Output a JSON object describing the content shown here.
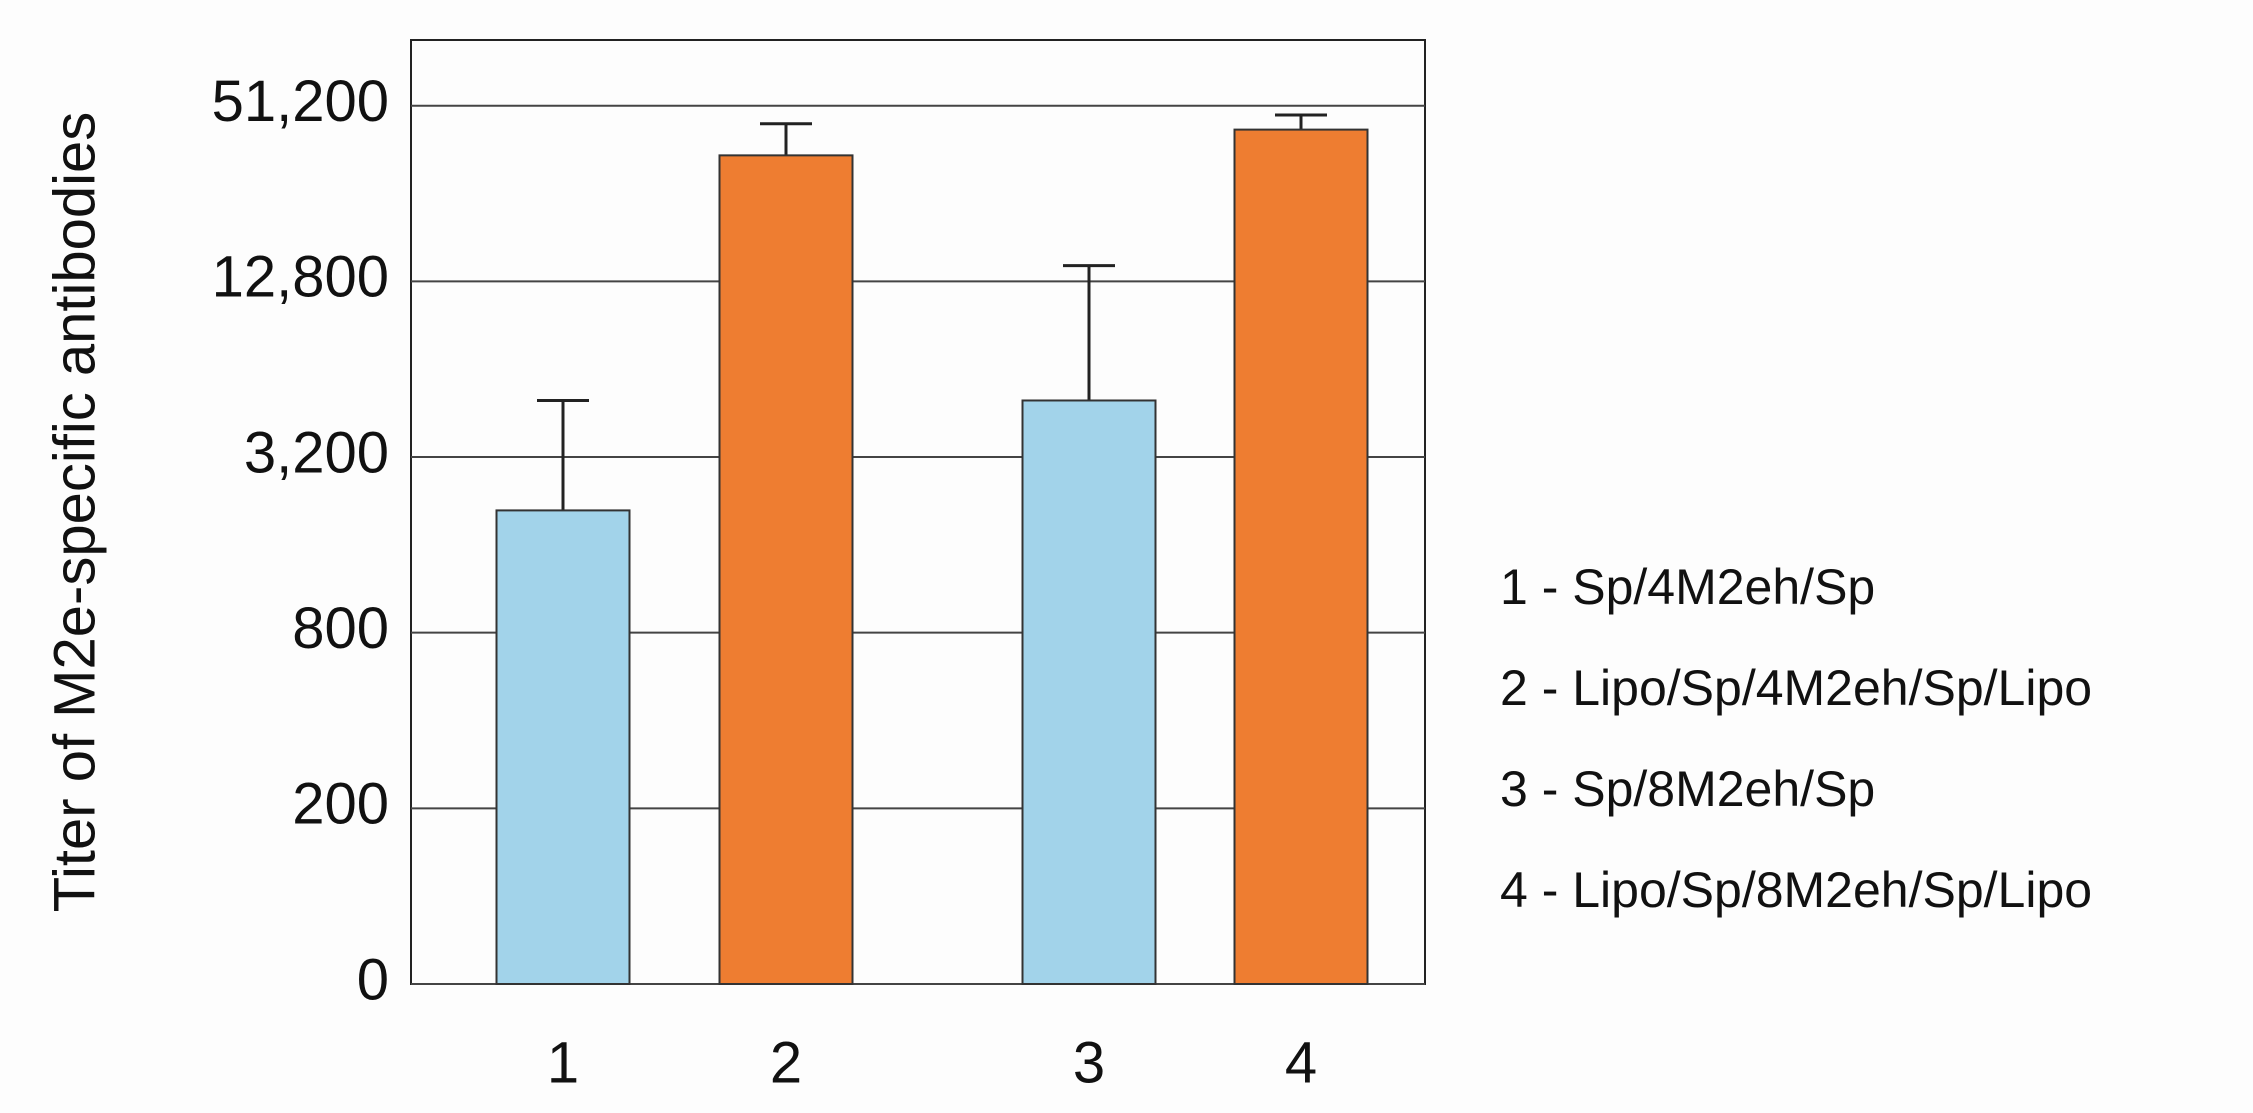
{
  "chart_data": {
    "type": "bar",
    "y_label": "Titer of M2e-specific antibodies",
    "categories": [
      "1",
      "2",
      "3",
      "4"
    ],
    "values": [
      2100,
      34600,
      5000,
      42400
    ],
    "errors": [
      2900,
      9800,
      9500,
      5200
    ],
    "colors": [
      "#a2d3ea",
      "#ee7d31",
      "#a2d3ea",
      "#ee7d31"
    ],
    "ylim": [
      50,
      86000
    ],
    "log_scale": true,
    "yticks": [
      {
        "value": 50,
        "label": "0"
      },
      200,
      800,
      {
        "value": 3200,
        "label": "3,200"
      },
      {
        "value": 12800,
        "label": "12,800"
      },
      {
        "value": 51200,
        "label": "51,200"
      }
    ],
    "grid": true,
    "legend": [
      "1 - Sp/4M2eh/Sp",
      "2 - Lipo/Sp/4M2eh/Sp/Lipo",
      "3 - Sp/8M2eh/Sp",
      "4 - Lipo/Sp/8M2eh/Sp/Lipo"
    ]
  }
}
